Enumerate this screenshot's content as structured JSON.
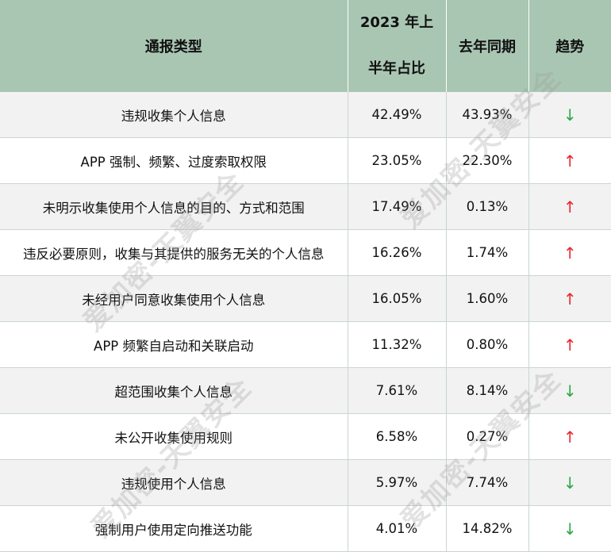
{
  "table": {
    "headers": {
      "type": "通报类型",
      "share_line1": "2023 年上",
      "share_line2": "半年占比",
      "last_year": "去年同期",
      "trend": "趋势"
    },
    "rows": [
      {
        "type": "违规收集个人信息",
        "share": "42.49%",
        "last_year": "43.93%",
        "trend": "↓",
        "direction": "down"
      },
      {
        "type": "APP 强制、频繁、过度索取权限",
        "share": "23.05%",
        "last_year": "22.30%",
        "trend": "↑",
        "direction": "up"
      },
      {
        "type": "未明示收集使用个人信息的目的、方式和范围",
        "share": "17.49%",
        "last_year": "0.13%",
        "trend": "↑",
        "direction": "up"
      },
      {
        "type": "违反必要原则，收集与其提供的服务无关的个人信息",
        "share": "16.26%",
        "last_year": "1.74%",
        "trend": "↑",
        "direction": "up"
      },
      {
        "type": "未经用户同意收集使用个人信息",
        "share": "16.05%",
        "last_year": "1.60%",
        "trend": "↑",
        "direction": "up"
      },
      {
        "type": "APP 频繁自启动和关联启动",
        "share": "11.32%",
        "last_year": "0.80%",
        "trend": "↑",
        "direction": "up"
      },
      {
        "type": "超范围收集个人信息",
        "share": "7.61%",
        "last_year": "8.14%",
        "trend": "↓",
        "direction": "down"
      },
      {
        "type": "未公开收集使用规则",
        "share": "6.58%",
        "last_year": "0.27%",
        "trend": "↑",
        "direction": "up"
      },
      {
        "type": "违规使用个人信息",
        "share": "5.97%",
        "last_year": "7.74%",
        "trend": "↓",
        "direction": "down"
      },
      {
        "type": "强制用户使用定向推送功能",
        "share": "4.01%",
        "last_year": "14.82%",
        "trend": "↓",
        "direction": "down"
      }
    ]
  },
  "watermark": "爱加密-天翼安全",
  "colors": {
    "header_bg": "#a9c6b3",
    "up": "#e8272f",
    "down": "#2aa846",
    "stripe": "#f2f2f2"
  }
}
